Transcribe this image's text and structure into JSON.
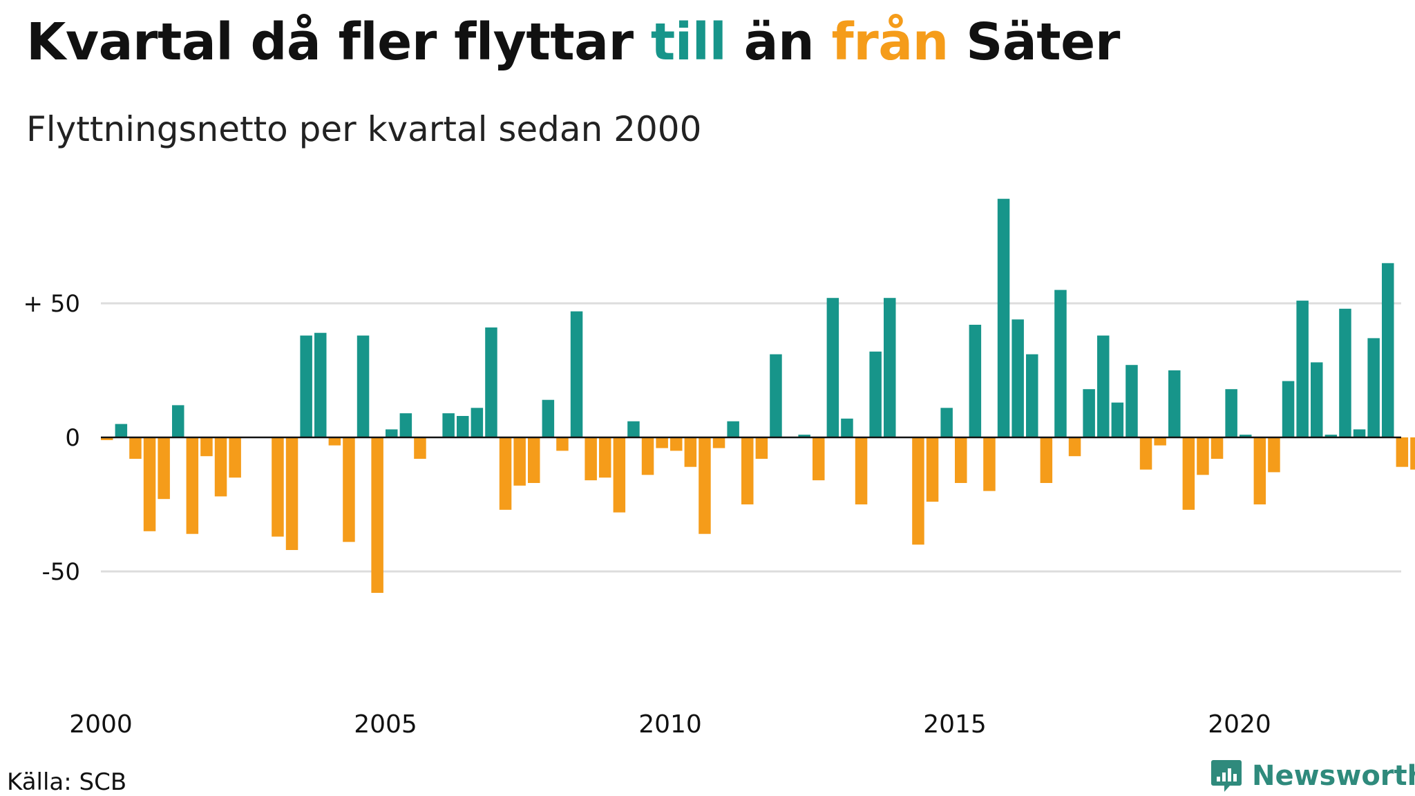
{
  "title": {
    "part1": "Kvartal då fler flyttar ",
    "till": "till",
    "part2": " än ",
    "fran": "från",
    "part3": " Säter"
  },
  "subtitle": "Flyttningsnetto per kvartal sedan 2000",
  "source": "Källa: SCB",
  "brand": "Newsworthy",
  "colors": {
    "positive": "#17958a",
    "negative": "#f59c1a",
    "grid": "#dddddd",
    "brand": "#2f8a7c"
  },
  "chart_data": {
    "type": "bar",
    "start": "2000 Q1",
    "ylim": [
      -90,
      90
    ],
    "yticks": [
      {
        "value": 50,
        "label": "+ 50"
      },
      {
        "value": 0,
        "label": "0"
      },
      {
        "value": -50,
        "label": "-50"
      }
    ],
    "xticks": [
      "2000",
      "2005",
      "2010",
      "2015",
      "2020"
    ],
    "values": [
      -1,
      5,
      -8,
      -35,
      -23,
      12,
      -36,
      -7,
      -22,
      -15,
      0,
      0,
      -37,
      -42,
      38,
      39,
      -3,
      -39,
      38,
      -58,
      3,
      9,
      -8,
      0,
      9,
      8,
      11,
      41,
      -27,
      -18,
      -17,
      14,
      -5,
      47,
      -16,
      -15,
      -28,
      6,
      -14,
      -4,
      -5,
      -11,
      -36,
      -4,
      6,
      -25,
      -8,
      31,
      0,
      1,
      -16,
      52,
      7,
      -25,
      32,
      52,
      0,
      -40,
      -24,
      11,
      -17,
      42,
      -20,
      89,
      44,
      31,
      -17,
      55,
      -7,
      18,
      38,
      13,
      27,
      -12,
      -3,
      25,
      -27,
      -14,
      -8,
      18,
      1,
      -25,
      -13,
      21,
      51,
      28,
      1,
      48,
      3,
      37,
      65,
      -11,
      -12
    ]
  }
}
